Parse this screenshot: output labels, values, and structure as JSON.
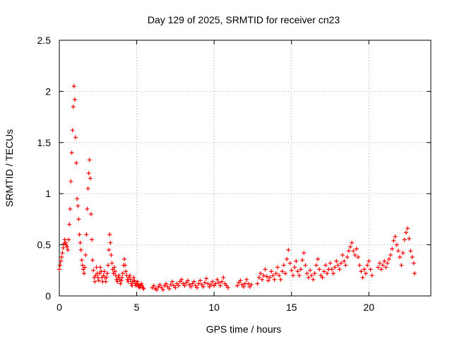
{
  "chart_data": {
    "type": "scatter",
    "title": "Day 129 of 2025, SRMTID for receiver cn23",
    "xlabel": "GPS time / hours",
    "ylabel": "SRMTID / TECUs",
    "xlim": [
      0,
      24
    ],
    "ylim": [
      0,
      2.5
    ],
    "xticks": [
      0,
      5,
      10,
      15,
      20
    ],
    "yticks": [
      0,
      0.5,
      1,
      1.5,
      2,
      2.5
    ],
    "xtick_labels": [
      "0",
      "5",
      "10",
      "15",
      "20"
    ],
    "ytick_labels": [
      "0",
      "0.5",
      "1",
      "1.5",
      "2",
      "2.5"
    ],
    "grid": true,
    "marker": "+",
    "series": [
      {
        "name": "SRMTID",
        "color": "#ff0000",
        "points": [
          [
            0.0,
            0.26
          ],
          [
            0.05,
            0.3
          ],
          [
            0.1,
            0.34
          ],
          [
            0.15,
            0.38
          ],
          [
            0.2,
            0.42
          ],
          [
            0.25,
            0.47
          ],
          [
            0.3,
            0.51
          ],
          [
            0.35,
            0.55
          ],
          [
            0.4,
            0.52
          ],
          [
            0.45,
            0.5
          ],
          [
            0.5,
            0.48
          ],
          [
            0.55,
            0.45
          ],
          [
            0.6,
            0.55
          ],
          [
            0.65,
            0.7
          ],
          [
            0.7,
            0.85
          ],
          [
            0.75,
            1.12
          ],
          [
            0.8,
            1.4
          ],
          [
            0.85,
            1.62
          ],
          [
            0.9,
            1.85
          ],
          [
            0.95,
            2.05
          ],
          [
            1.0,
            1.92
          ],
          [
            1.05,
            1.55
          ],
          [
            1.1,
            1.3
          ],
          [
            1.15,
            0.95
          ],
          [
            1.2,
            0.88
          ],
          [
            1.25,
            0.75
          ],
          [
            1.3,
            0.6
          ],
          [
            1.35,
            0.52
          ],
          [
            1.4,
            0.45
          ],
          [
            1.45,
            0.35
          ],
          [
            1.5,
            0.3
          ],
          [
            1.55,
            0.26
          ],
          [
            1.6,
            0.22
          ],
          [
            1.65,
            0.28
          ],
          [
            1.7,
            0.4
          ],
          [
            1.75,
            0.6
          ],
          [
            1.8,
            0.85
          ],
          [
            1.85,
            1.05
          ],
          [
            1.9,
            1.2
          ],
          [
            1.95,
            1.33
          ],
          [
            2.0,
            1.15
          ],
          [
            2.05,
            0.8
          ],
          [
            2.1,
            0.55
          ],
          [
            2.15,
            0.35
          ],
          [
            2.2,
            0.25
          ],
          [
            2.25,
            0.18
          ],
          [
            2.3,
            0.14
          ],
          [
            2.35,
            0.2
          ],
          [
            2.4,
            0.28
          ],
          [
            2.45,
            0.22
          ],
          [
            2.5,
            0.18
          ],
          [
            2.55,
            0.15
          ],
          [
            2.6,
            0.22
          ],
          [
            2.65,
            0.28
          ],
          [
            2.7,
            0.24
          ],
          [
            2.75,
            0.18
          ],
          [
            2.8,
            0.14
          ],
          [
            2.85,
            0.2
          ],
          [
            2.9,
            0.24
          ],
          [
            2.95,
            0.18
          ],
          [
            3.0,
            0.14
          ],
          [
            3.05,
            0.18
          ],
          [
            3.1,
            0.22
          ],
          [
            3.15,
            0.3
          ],
          [
            3.2,
            0.45
          ],
          [
            3.25,
            0.6
          ],
          [
            3.3,
            0.52
          ],
          [
            3.35,
            0.4
          ],
          [
            3.4,
            0.32
          ],
          [
            3.45,
            0.26
          ],
          [
            3.5,
            0.22
          ],
          [
            3.55,
            0.28
          ],
          [
            3.6,
            0.24
          ],
          [
            3.65,
            0.2
          ],
          [
            3.7,
            0.16
          ],
          [
            3.75,
            0.14
          ],
          [
            3.8,
            0.18
          ],
          [
            3.85,
            0.2
          ],
          [
            3.9,
            0.16
          ],
          [
            3.95,
            0.12
          ],
          [
            4.0,
            0.15
          ],
          [
            4.05,
            0.18
          ],
          [
            4.1,
            0.22
          ],
          [
            4.15,
            0.3
          ],
          [
            4.2,
            0.36
          ],
          [
            4.25,
            0.3
          ],
          [
            4.3,
            0.24
          ],
          [
            4.35,
            0.2
          ],
          [
            4.4,
            0.16
          ],
          [
            4.45,
            0.14
          ],
          [
            4.5,
            0.18
          ],
          [
            4.55,
            0.2
          ],
          [
            4.6,
            0.16
          ],
          [
            4.65,
            0.12
          ],
          [
            4.7,
            0.1
          ],
          [
            4.75,
            0.14
          ],
          [
            4.8,
            0.18
          ],
          [
            4.85,
            0.15
          ],
          [
            4.9,
            0.12
          ],
          [
            4.95,
            0.1
          ],
          [
            5.0,
            0.12
          ],
          [
            5.05,
            0.14
          ],
          [
            5.1,
            0.11
          ],
          [
            5.15,
            0.09
          ],
          [
            5.2,
            0.08
          ],
          [
            5.25,
            0.1
          ],
          [
            5.3,
            0.12
          ],
          [
            5.35,
            0.1
          ],
          [
            5.4,
            0.08
          ],
          [
            5.45,
            0.07
          ],
          [
            6.0,
            0.08
          ],
          [
            6.1,
            0.1
          ],
          [
            6.2,
            0.07
          ],
          [
            6.3,
            0.06
          ],
          [
            6.4,
            0.09
          ],
          [
            6.5,
            0.11
          ],
          [
            6.6,
            0.08
          ],
          [
            6.7,
            0.06
          ],
          [
            6.8,
            0.1
          ],
          [
            6.9,
            0.12
          ],
          [
            7.0,
            0.09
          ],
          [
            7.1,
            0.07
          ],
          [
            7.2,
            0.11
          ],
          [
            7.3,
            0.14
          ],
          [
            7.4,
            0.1
          ],
          [
            7.5,
            0.08
          ],
          [
            7.6,
            0.12
          ],
          [
            7.7,
            0.1
          ],
          [
            7.8,
            0.14
          ],
          [
            7.9,
            0.16
          ],
          [
            8.0,
            0.12
          ],
          [
            8.1,
            0.1
          ],
          [
            8.2,
            0.13
          ],
          [
            8.3,
            0.15
          ],
          [
            8.4,
            0.11
          ],
          [
            8.5,
            0.09
          ],
          [
            8.6,
            0.12
          ],
          [
            8.7,
            0.14
          ],
          [
            8.8,
            0.1
          ],
          [
            8.9,
            0.08
          ],
          [
            9.0,
            0.12
          ],
          [
            9.1,
            0.15
          ],
          [
            9.2,
            0.11
          ],
          [
            9.3,
            0.09
          ],
          [
            9.4,
            0.13
          ],
          [
            9.5,
            0.17
          ],
          [
            9.6,
            0.12
          ],
          [
            9.7,
            0.09
          ],
          [
            9.8,
            0.11
          ],
          [
            9.9,
            0.14
          ],
          [
            10.0,
            0.1
          ],
          [
            10.1,
            0.12
          ],
          [
            10.2,
            0.16
          ],
          [
            10.3,
            0.13
          ],
          [
            10.4,
            0.1
          ],
          [
            10.5,
            0.14
          ],
          [
            10.6,
            0.18
          ],
          [
            10.7,
            0.12
          ],
          [
            10.8,
            0.1
          ],
          [
            10.9,
            0.08
          ],
          [
            11.5,
            0.1
          ],
          [
            11.6,
            0.13
          ],
          [
            11.7,
            0.15
          ],
          [
            11.8,
            0.11
          ],
          [
            11.9,
            0.09
          ],
          [
            12.0,
            0.12
          ],
          [
            12.1,
            0.16
          ],
          [
            12.2,
            0.12
          ],
          [
            12.3,
            0.09
          ],
          [
            12.4,
            0.11
          ],
          [
            12.8,
            0.12
          ],
          [
            12.9,
            0.18
          ],
          [
            13.0,
            0.22
          ],
          [
            13.1,
            0.16
          ],
          [
            13.2,
            0.2
          ],
          [
            13.3,
            0.26
          ],
          [
            13.4,
            0.19
          ],
          [
            13.5,
            0.15
          ],
          [
            13.6,
            0.18
          ],
          [
            13.7,
            0.24
          ],
          [
            13.8,
            0.2
          ],
          [
            13.9,
            0.16
          ],
          [
            14.0,
            0.22
          ],
          [
            14.1,
            0.28
          ],
          [
            14.2,
            0.2
          ],
          [
            14.3,
            0.16
          ],
          [
            14.4,
            0.24
          ],
          [
            14.5,
            0.3
          ],
          [
            14.6,
            0.22
          ],
          [
            14.7,
            0.36
          ],
          [
            14.8,
            0.45
          ],
          [
            14.9,
            0.32
          ],
          [
            15.0,
            0.25
          ],
          [
            15.1,
            0.2
          ],
          [
            15.2,
            0.28
          ],
          [
            15.3,
            0.34
          ],
          [
            15.4,
            0.24
          ],
          [
            15.5,
            0.2
          ],
          [
            15.6,
            0.26
          ],
          [
            15.7,
            0.35
          ],
          [
            15.8,
            0.42
          ],
          [
            15.9,
            0.3
          ],
          [
            16.0,
            0.22
          ],
          [
            16.1,
            0.18
          ],
          [
            16.2,
            0.25
          ],
          [
            16.3,
            0.2
          ],
          [
            16.4,
            0.16
          ],
          [
            16.5,
            0.22
          ],
          [
            16.6,
            0.3
          ],
          [
            16.7,
            0.36
          ],
          [
            16.8,
            0.26
          ],
          [
            16.9,
            0.2
          ],
          [
            17.0,
            0.18
          ],
          [
            17.1,
            0.24
          ],
          [
            17.2,
            0.3
          ],
          [
            17.3,
            0.22
          ],
          [
            17.4,
            0.26
          ],
          [
            17.5,
            0.32
          ],
          [
            17.6,
            0.26
          ],
          [
            17.7,
            0.22
          ],
          [
            17.8,
            0.28
          ],
          [
            17.9,
            0.34
          ],
          [
            18.0,
            0.3
          ],
          [
            18.1,
            0.26
          ],
          [
            18.2,
            0.32
          ],
          [
            18.3,
            0.4
          ],
          [
            18.4,
            0.34
          ],
          [
            18.5,
            0.3
          ],
          [
            18.6,
            0.38
          ],
          [
            18.7,
            0.44
          ],
          [
            18.8,
            0.48
          ],
          [
            18.9,
            0.52
          ],
          [
            19.0,
            0.44
          ],
          [
            19.1,
            0.4
          ],
          [
            19.2,
            0.46
          ],
          [
            19.3,
            0.38
          ],
          [
            19.4,
            0.3
          ],
          [
            19.5,
            0.24
          ],
          [
            19.6,
            0.18
          ],
          [
            19.7,
            0.26
          ],
          [
            19.8,
            0.22
          ],
          [
            19.9,
            0.3
          ],
          [
            20.0,
            0.34
          ],
          [
            20.1,
            0.26
          ],
          [
            20.2,
            0.2
          ],
          [
            20.6,
            0.28
          ],
          [
            20.7,
            0.32
          ],
          [
            20.8,
            0.26
          ],
          [
            20.9,
            0.3
          ],
          [
            21.0,
            0.34
          ],
          [
            21.1,
            0.28
          ],
          [
            21.2,
            0.32
          ],
          [
            21.3,
            0.36
          ],
          [
            21.4,
            0.4
          ],
          [
            21.5,
            0.46
          ],
          [
            21.6,
            0.54
          ],
          [
            21.7,
            0.58
          ],
          [
            21.8,
            0.5
          ],
          [
            21.9,
            0.44
          ],
          [
            22.0,
            0.38
          ],
          [
            22.1,
            0.3
          ],
          [
            22.2,
            0.42
          ],
          [
            22.3,
            0.55
          ],
          [
            22.4,
            0.62
          ],
          [
            22.5,
            0.66
          ],
          [
            22.6,
            0.56
          ],
          [
            22.7,
            0.44
          ],
          [
            22.8,
            0.38
          ],
          [
            22.9,
            0.32
          ],
          [
            22.95,
            0.22
          ]
        ]
      }
    ]
  }
}
